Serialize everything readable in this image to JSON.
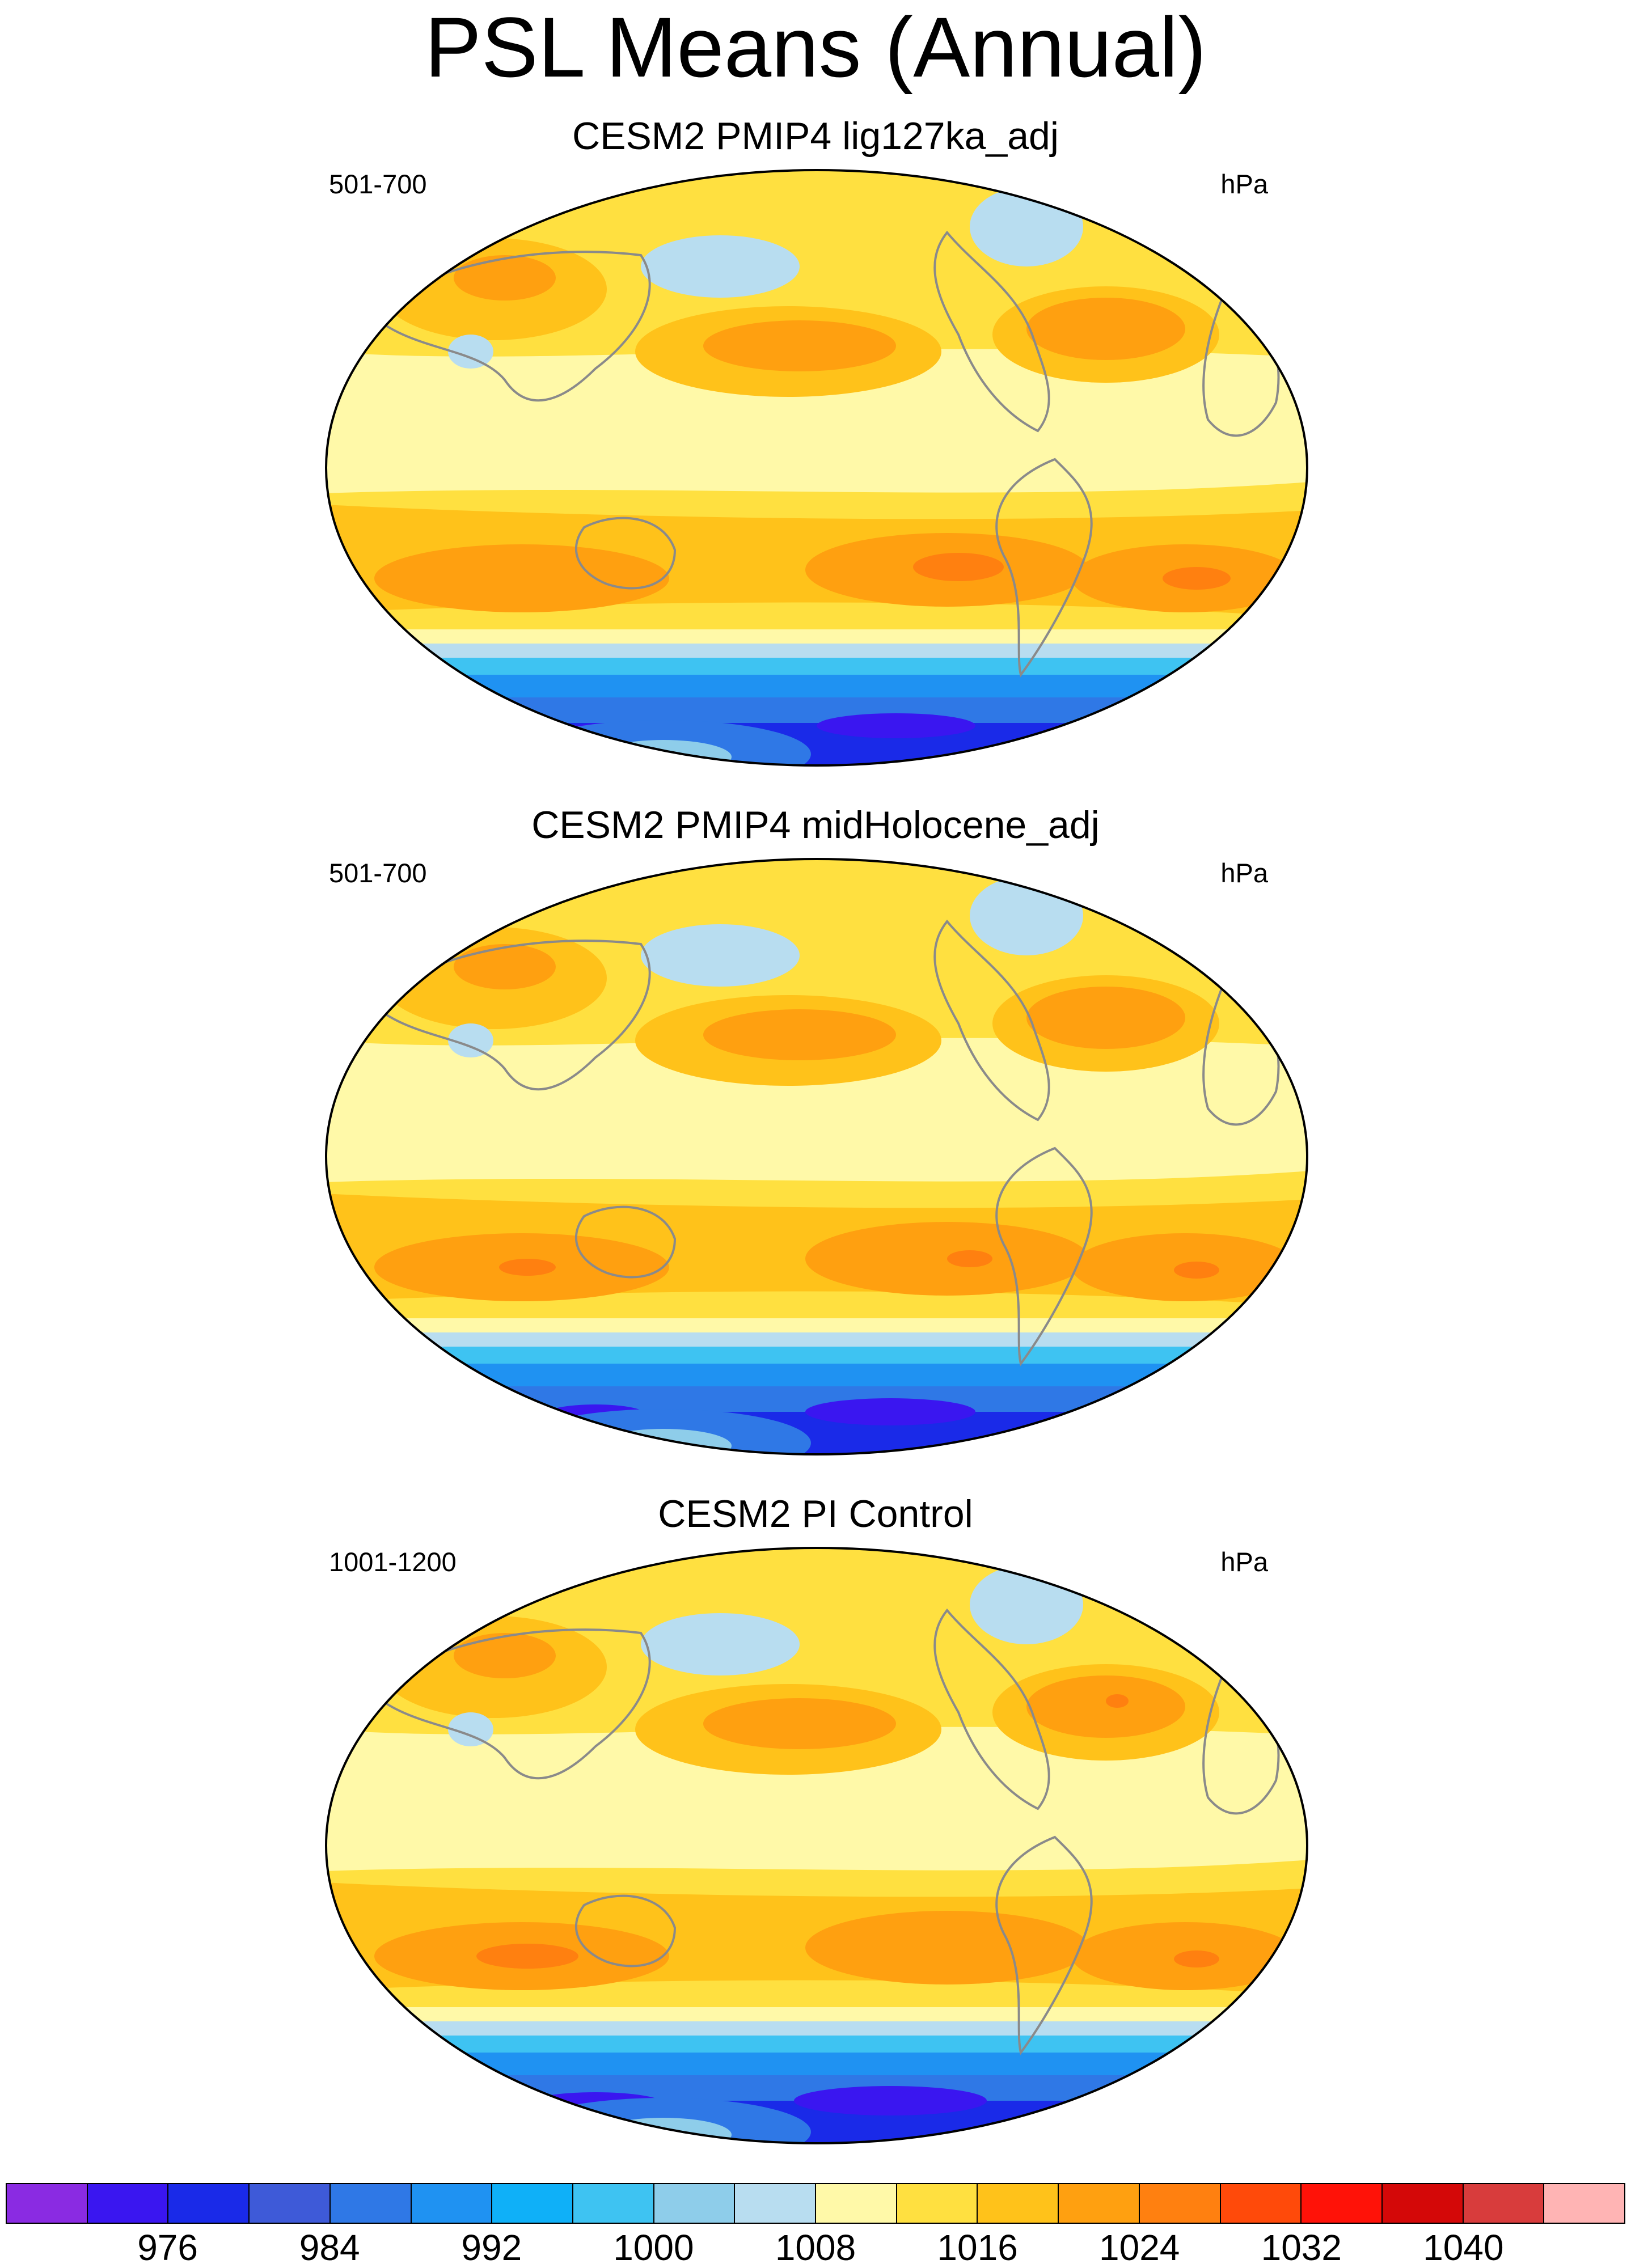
{
  "figure": {
    "title": "PSL Means (Annual)"
  },
  "panels": [
    {
      "title": "CESM2 PMIP4 lig127ka_adj",
      "years": "501-700",
      "units": "hPa"
    },
    {
      "title": "CESM2 PMIP4 midHolocene_adj",
      "years": "501-700",
      "units": "hPa"
    },
    {
      "title": "CESM2 PI Control",
      "years": "1001-1200",
      "units": "hPa"
    }
  ],
  "colorbar": {
    "colors": [
      "#8a2be2",
      "#3a16f0",
      "#1a2ae8",
      "#3e5ad8",
      "#2f78e6",
      "#1f92f2",
      "#0fb0f8",
      "#3ec3f2",
      "#8ecdea",
      "#b8ddf0",
      "#fff9a8",
      "#ffe040",
      "#ffc21a",
      "#ffa010",
      "#ff8010",
      "#ff4a0a",
      "#ff1208",
      "#d40808",
      "#d83c3c",
      "#ffb4b4"
    ],
    "labels": [
      "976",
      "984",
      "992",
      "1000",
      "1008",
      "1016",
      "1024",
      "1032",
      "1040"
    ],
    "label_after_cell": [
      2,
      4,
      6,
      8,
      10,
      12,
      14,
      16,
      18
    ]
  }
}
